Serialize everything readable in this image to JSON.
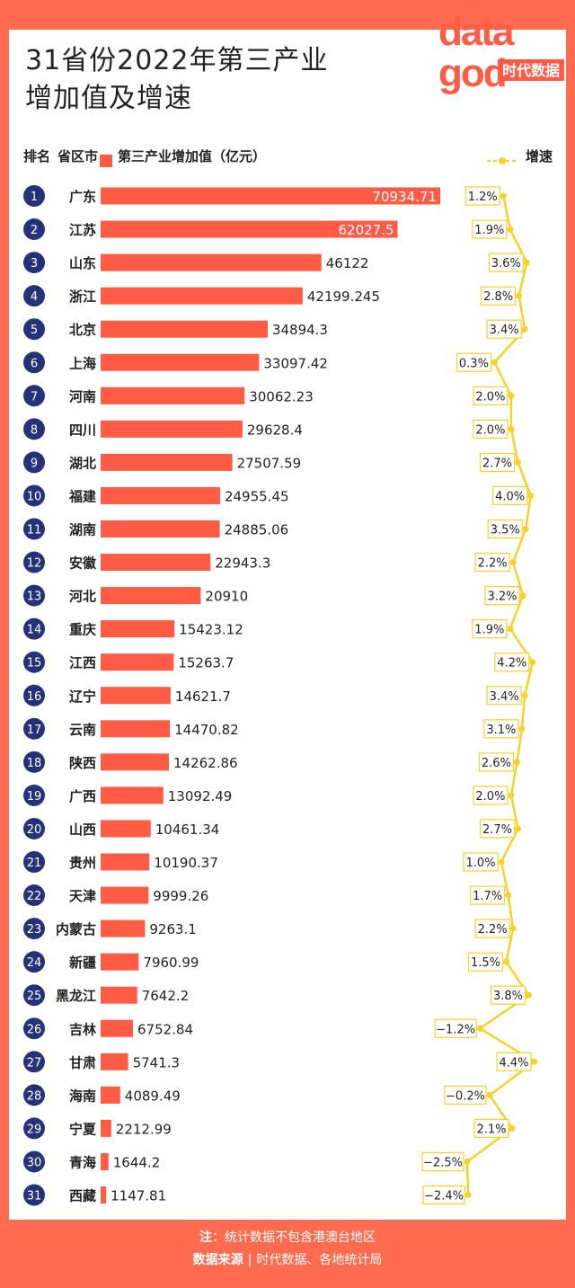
{
  "title_line1": "31省份2022年第三产业",
  "title_line2": "增加值及增速",
  "header": {
    "rank": "排名",
    "province": "省区市",
    "value_legend": "第三产业增加值（亿元）",
    "growth_legend": "增速"
  },
  "logo": {
    "top": "data",
    "bottom": "god",
    "brand": "时代数据"
  },
  "colors": {
    "bar": "#ff5b45",
    "rank_circle": "#25327a",
    "growth_line": "#f5d229",
    "background": "#ff6b4e"
  },
  "chart_data": {
    "type": "bar",
    "orientation": "horizontal",
    "categories": [
      "广东",
      "江苏",
      "山东",
      "浙江",
      "北京",
      "上海",
      "河南",
      "四川",
      "湖北",
      "福建",
      "湖南",
      "安徽",
      "河北",
      "重庆",
      "江西",
      "辽宁",
      "云南",
      "陕西",
      "广西",
      "山西",
      "贵州",
      "天津",
      "内蒙古",
      "新疆",
      "黑龙江",
      "吉林",
      "甘肃",
      "海南",
      "宁夏",
      "青海",
      "西藏"
    ],
    "ranks": [
      "1",
      "2",
      "3",
      "4",
      "5",
      "6",
      "7",
      "8",
      "9",
      "10",
      "11",
      "12",
      "13",
      "14",
      "15",
      "16",
      "17",
      "18",
      "19",
      "20",
      "21",
      "22",
      "23",
      "24",
      "25",
      "26",
      "27",
      "28",
      "29",
      "30",
      "31"
    ],
    "series": [
      {
        "name": "第三产业增加值（亿元）",
        "type": "bar",
        "values": [
          70934.71,
          62027.5,
          46122,
          42199.245,
          34894.3,
          33097.42,
          30062.23,
          29628.4,
          27507.59,
          24955.45,
          24885.06,
          22943.3,
          20910,
          15423.12,
          15263.7,
          14621.7,
          14470.82,
          14262.86,
          13092.49,
          10461.34,
          10190.37,
          9999.26,
          9263.1,
          7960.99,
          7642.2,
          6752.84,
          5741.3,
          4089.49,
          2212.99,
          1644.2,
          1147.81
        ],
        "labels": [
          "70934.71",
          "62027.5",
          "46122",
          "42199.245",
          "34894.3",
          "33097.42",
          "30062.23",
          "29628.4",
          "27507.59",
          "24955.45",
          "24885.06",
          "22943.3",
          "20910",
          "15423.12",
          "15263.7",
          "14621.7",
          "14470.82",
          "14262.86",
          "13092.49",
          "10461.34",
          "10190.37",
          "9999.26",
          "9263.1",
          "7960.99",
          "7642.2",
          "6752.84",
          "5741.3",
          "4089.49",
          "2212.99",
          "1644.2",
          "1147.81"
        ]
      },
      {
        "name": "增速",
        "type": "line",
        "values": [
          1.2,
          1.9,
          3.6,
          2.8,
          3.4,
          0.3,
          2.0,
          2.0,
          2.7,
          4.0,
          3.5,
          2.2,
          3.2,
          1.9,
          4.2,
          3.4,
          3.1,
          2.6,
          2.0,
          2.7,
          1.0,
          1.7,
          2.2,
          1.5,
          3.8,
          -1.2,
          4.4,
          -0.2,
          2.1,
          -2.5,
          -2.4
        ],
        "labels": [
          "1.2%",
          "1.9%",
          "3.6%",
          "2.8%",
          "3.4%",
          "0.3%",
          "2.0%",
          "2.0%",
          "2.7%",
          "4.0%",
          "3.5%",
          "2.2%",
          "3.2%",
          "1.9%",
          "4.2%",
          "3.4%",
          "3.1%",
          "2.6%",
          "2.0%",
          "2.7%",
          "1.0%",
          "1.7%",
          "2.2%",
          "1.5%",
          "3.8%",
          "−1.2%",
          "4.4%",
          "−0.2%",
          "2.1%",
          "−2.5%",
          "−2.4%"
        ]
      }
    ]
  },
  "footer": {
    "note_label": "注",
    "note_text": "：统计数据不包含港澳台地区",
    "source_label": "数据来源",
    "source_sep": "|",
    "source_text": "时代数据、各地统计局"
  }
}
